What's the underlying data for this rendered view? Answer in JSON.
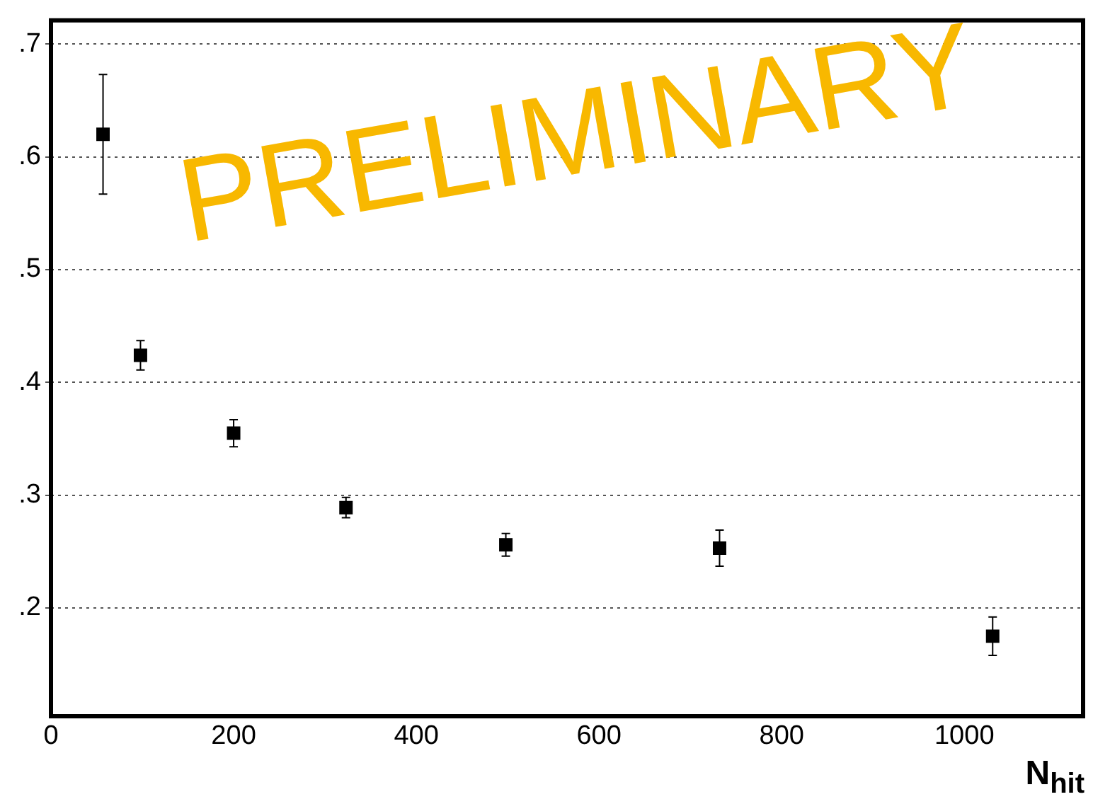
{
  "chart_data": {
    "type": "scatter",
    "xlabel": "N$_{hit}$",
    "annotations": [
      "PRELIMINARY"
    ],
    "x": [
      57,
      98,
      200,
      323,
      498,
      732,
      1031
    ],
    "series": [
      {
        "color": "#000000",
        "values": [
          0.62,
          0.424,
          0.355,
          0.289,
          0.256,
          0.253,
          0.175
        ],
        "errors": [
          0.053,
          0.013,
          0.012,
          0.009,
          0.01,
          0.016,
          0.017
        ]
      }
    ],
    "xlim": [
      0,
      1130
    ],
    "xticks": [
      0,
      200,
      400,
      600,
      800,
      1000
    ],
    "ylim": [
      0.104,
      0.721
    ],
    "yticks": [
      {
        "value": 0.2,
        "label": ".2"
      },
      {
        "value": 0.3,
        "label": ".3"
      },
      {
        "value": 0.4,
        "label": ".4"
      },
      {
        "value": 0.5,
        "label": ".5"
      },
      {
        "value": 0.6,
        "label": ".6"
      },
      {
        "value": 0.7,
        "label": ".7"
      }
    ],
    "grid": "y",
    "marker": "square",
    "legend": false
  }
}
